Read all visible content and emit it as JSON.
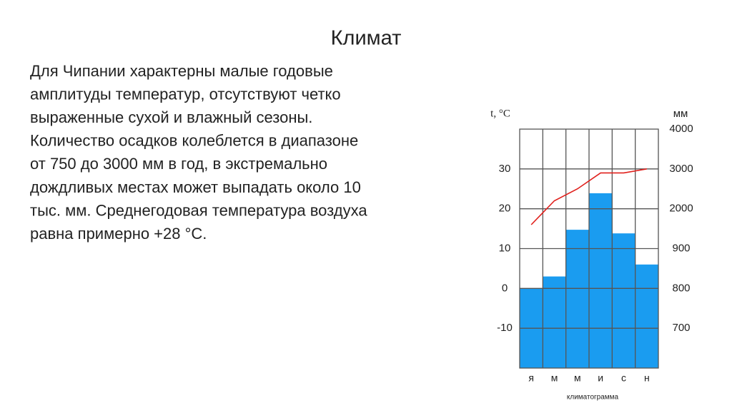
{
  "header": {
    "title": "Климат"
  },
  "body": {
    "lines": [
      "Для Чипании характерны малые годовые",
      "амплитуды температур, отсутствуют четко",
      "выраженные сухой и влажный сезоны.",
      "Количество осадков колеблется в диапазоне",
      "от 750 до 3000 мм в год, в экстремально",
      "дождливых местах может выпадать около 10",
      "тыс. мм. Среднегодовая температура воздуха",
      "равна примерно +28 °С."
    ]
  },
  "chart_data": {
    "type": "bar",
    "caption": "климатограмма",
    "y_label": "t, °C",
    "y2_label": "мм",
    "categories": [
      "я",
      "м",
      "м",
      "и",
      "с",
      "н"
    ],
    "series": [
      {
        "type": "bar",
        "axis": "y2",
        "color": "#1a9cf0",
        "values": [
          800,
          830,
          1420,
          2390,
          1320,
          860
        ]
      },
      {
        "type": "line",
        "color": "#e0201c",
        "values": [
          16,
          22,
          25,
          29,
          29,
          30
        ]
      }
    ],
    "ylim": [
      -20,
      40
    ],
    "yticks": [
      -10,
      0,
      10,
      20,
      30
    ],
    "y2lim": [
      600,
      4000
    ],
    "y2ticks": [
      700,
      800,
      900,
      2000,
      3000,
      4000
    ],
    "grid": true
  }
}
